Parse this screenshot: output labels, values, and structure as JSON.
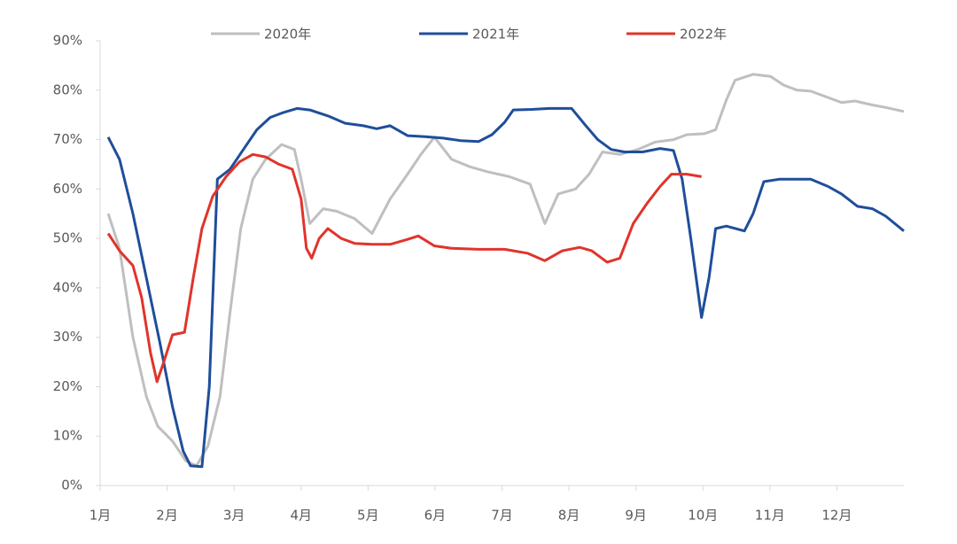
{
  "chart_data": {
    "type": "line",
    "xlim": [
      1,
      13
    ],
    "ylim": [
      0,
      90
    ],
    "xticks": [
      {
        "value": 1,
        "label": "1月"
      },
      {
        "value": 2,
        "label": "2月"
      },
      {
        "value": 3,
        "label": "3月"
      },
      {
        "value": 4,
        "label": "4月"
      },
      {
        "value": 5,
        "label": "5月"
      },
      {
        "value": 6,
        "label": "6月"
      },
      {
        "value": 7,
        "label": "7月"
      },
      {
        "value": 8,
        "label": "8月"
      },
      {
        "value": 9,
        "label": "9月"
      },
      {
        "value": 10,
        "label": "10月"
      },
      {
        "value": 11,
        "label": "11月"
      },
      {
        "value": 12,
        "label": "12月"
      }
    ],
    "yticks": [
      {
        "value": 0,
        "label": "0%"
      },
      {
        "value": 10,
        "label": "10%"
      },
      {
        "value": 20,
        "label": "20%"
      },
      {
        "value": 30,
        "label": "30%"
      },
      {
        "value": 40,
        "label": "40%"
      },
      {
        "value": 50,
        "label": "50%"
      },
      {
        "value": 60,
        "label": "60%"
      },
      {
        "value": 70,
        "label": "70%"
      },
      {
        "value": 80,
        "label": "80%"
      },
      {
        "value": 90,
        "label": "90%"
      }
    ],
    "series": [
      {
        "name": "2020年",
        "color": "#bfbfbf",
        "x": [
          1.12,
          1.29,
          1.49,
          1.69,
          1.86,
          2.08,
          2.28,
          2.44,
          2.61,
          2.79,
          2.94,
          3.1,
          3.28,
          3.47,
          3.71,
          3.9,
          4.0,
          4.13,
          4.33,
          4.53,
          4.8,
          5.06,
          5.33,
          5.59,
          5.79,
          5.99,
          6.25,
          6.52,
          6.78,
          7.11,
          7.42,
          7.64,
          7.84,
          8.1,
          8.3,
          8.5,
          8.76,
          9.03,
          9.29,
          9.56,
          9.76,
          10.02,
          10.19,
          10.35,
          10.48,
          10.75,
          11.01,
          11.21,
          11.41,
          11.61,
          11.87,
          12.07,
          12.27,
          12.53,
          12.73,
          13.0
        ],
        "values": [
          55,
          48,
          30,
          18,
          12,
          9,
          5,
          4,
          8,
          18,
          35,
          52,
          62,
          66,
          69,
          68,
          62,
          53,
          56,
          55.5,
          54,
          51,
          58,
          63,
          67,
          70.5,
          66,
          64.5,
          63.5,
          62.5,
          61,
          53,
          59,
          60,
          63,
          67.5,
          67,
          68,
          69.5,
          70,
          71,
          71.2,
          72,
          78,
          82,
          83.2,
          82.8,
          81,
          80,
          79.8,
          78.5,
          77.5,
          77.8,
          77,
          76.5,
          75.7
        ]
      },
      {
        "name": "2021年",
        "color": "#1f4e9a",
        "x": [
          1.12,
          1.29,
          1.49,
          1.69,
          1.89,
          2.08,
          2.24,
          2.35,
          2.52,
          2.63,
          2.75,
          2.94,
          3.14,
          3.34,
          3.54,
          3.74,
          3.94,
          4.13,
          4.4,
          4.66,
          4.93,
          5.13,
          5.33,
          5.59,
          5.85,
          6.12,
          6.38,
          6.65,
          6.85,
          7.04,
          7.17,
          7.44,
          7.71,
          8.04,
          8.24,
          8.43,
          8.63,
          8.83,
          9.1,
          9.36,
          9.56,
          9.69,
          9.82,
          9.98,
          10.09,
          10.19,
          10.35,
          10.62,
          10.75,
          10.91,
          11.15,
          11.41,
          11.61,
          11.87,
          12.07,
          12.31,
          12.53,
          12.73,
          13.0
        ],
        "values": [
          70.5,
          66,
          55,
          42,
          29,
          16,
          7,
          4,
          3.8,
          20,
          62,
          64,
          68,
          72,
          74.5,
          75.5,
          76.3,
          76,
          74.8,
          73.3,
          72.8,
          72.2,
          72.8,
          70.8,
          70.6,
          70.3,
          69.8,
          69.6,
          71,
          73.5,
          76,
          76.1,
          76.3,
          76.3,
          73,
          70,
          68,
          67.5,
          67.5,
          68.2,
          67.8,
          62,
          50,
          34,
          42,
          52,
          52.5,
          51.5,
          55,
          61.5,
          62,
          62,
          62,
          60.5,
          59,
          56.5,
          56,
          54.5,
          51.5
        ]
      },
      {
        "name": "2022年",
        "color": "#e0342b",
        "x": [
          1.12,
          1.29,
          1.49,
          1.62,
          1.75,
          1.85,
          1.95,
          2.08,
          2.26,
          2.39,
          2.52,
          2.68,
          2.88,
          3.08,
          3.28,
          3.47,
          3.67,
          3.87,
          4.0,
          4.08,
          4.16,
          4.27,
          4.4,
          4.6,
          4.8,
          5.06,
          5.33,
          5.59,
          5.75,
          5.99,
          6.25,
          6.65,
          7.04,
          7.38,
          7.64,
          7.9,
          8.16,
          8.34,
          8.57,
          8.76,
          8.96,
          9.16,
          9.36,
          9.53,
          9.76,
          9.98
        ],
        "values": [
          51,
          47.5,
          44.5,
          38,
          27,
          21,
          25,
          30.5,
          31,
          42,
          52,
          58.5,
          62.5,
          65.5,
          67,
          66.5,
          65,
          64,
          58,
          48,
          46,
          50,
          52,
          50,
          49,
          48.8,
          48.8,
          49.8,
          50.5,
          48.5,
          48,
          47.8,
          47.8,
          47,
          45.5,
          47.5,
          48.2,
          47.5,
          45.2,
          46,
          53,
          57,
          60.5,
          63,
          63,
          62.5
        ]
      }
    ]
  }
}
